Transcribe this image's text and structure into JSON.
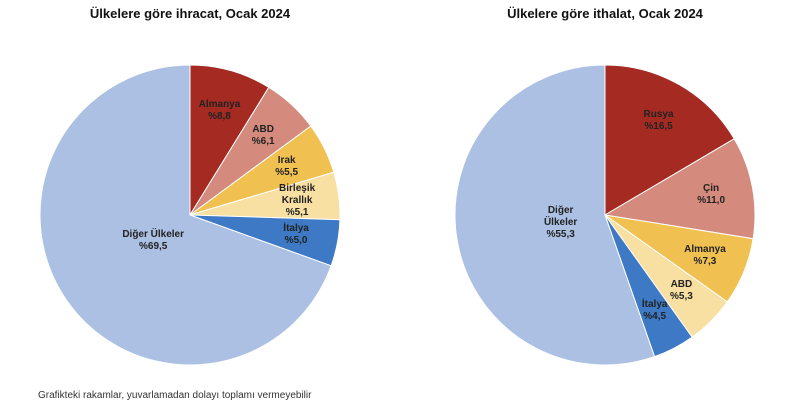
{
  "chart_data": [
    {
      "type": "pie",
      "title": "Ülkelere göre ihracat, Ocak 2024",
      "categories": [
        "Almanya",
        "ABD",
        "Irak",
        "Birleşik\nKrallık",
        "İtalya",
        "Diğer Ülkeler"
      ],
      "values": [
        8.8,
        6.1,
        5.5,
        5.1,
        5.0,
        69.5
      ],
      "value_labels": [
        "%8,8",
        "%6,1",
        "%5,5",
        "%5,1",
        "%5,0",
        "%69,5"
      ],
      "colors": [
        "#a52a22",
        "#d48a7c",
        "#f0c050",
        "#f8dfa2",
        "#3d79c4",
        "#abc0e2"
      ]
    },
    {
      "type": "pie",
      "title": "Ülkelere göre ithalat, Ocak 2024",
      "categories": [
        "Rusya",
        "Çin",
        "Almanya",
        "ABD",
        "İtalya",
        "Diğer\nÜlkeler"
      ],
      "values": [
        16.5,
        11.0,
        7.3,
        5.3,
        4.5,
        55.3
      ],
      "value_labels": [
        "%16,5",
        "%11,0",
        "%7,3",
        "%5,3",
        "%4,5",
        "%55,3"
      ],
      "colors": [
        "#a52a22",
        "#d48a7c",
        "#f0c050",
        "#f8dfa2",
        "#3d79c4",
        "#abc0e2"
      ]
    }
  ],
  "note": "Grafikteki rakamlar, yuvarlamadan dolayı toplamı vermeyebilir"
}
